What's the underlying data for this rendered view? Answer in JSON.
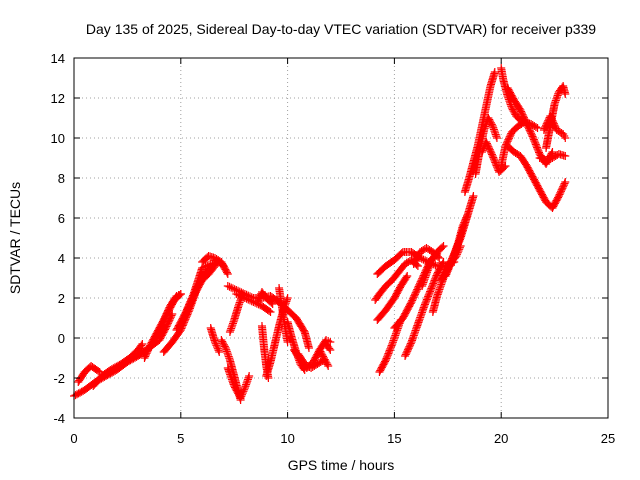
{
  "chart_data": {
    "type": "scatter",
    "title": "Day 135 of 2025, Sidereal Day-to-day VTEC variation (SDTVAR) for receiver p339",
    "xlabel": "GPS time / hours",
    "ylabel": "SDTVAR / TECUs",
    "xlim": [
      0,
      25
    ],
    "ylim": [
      -4,
      14
    ],
    "xticks": [
      "0",
      "5",
      "10",
      "15",
      "20",
      "25"
    ],
    "yticks": [
      "-4",
      "-2",
      "0",
      "2",
      "4",
      "6",
      "8",
      "10",
      "12",
      "14"
    ],
    "grid": true,
    "marker": "+",
    "color": "#ff0000",
    "series": [
      {
        "name": "",
        "points": [
          [
            0.0,
            -2.9
          ],
          [
            0.5,
            -2.6
          ],
          [
            1.0,
            -2.2
          ],
          [
            1.5,
            -1.9
          ],
          [
            2.0,
            -1.6
          ],
          [
            2.5,
            -1.2
          ],
          [
            3.0,
            -0.9
          ],
          [
            3.5,
            -0.5
          ],
          [
            4.0,
            -0.1
          ],
          [
            4.3,
            0.5
          ],
          [
            4.6,
            1.2
          ]
        ]
      },
      {
        "name": "",
        "points": [
          [
            0.2,
            -2.2
          ],
          [
            0.5,
            -1.7
          ],
          [
            0.8,
            -1.4
          ],
          [
            1.2,
            -1.7
          ]
        ]
      },
      {
        "name": "",
        "points": [
          [
            0.9,
            -2.4
          ],
          [
            1.3,
            -1.9
          ],
          [
            1.7,
            -1.6
          ],
          [
            2.2,
            -1.3
          ],
          [
            2.6,
            -1.0
          ],
          [
            3.0,
            -0.6
          ],
          [
            3.2,
            -0.3
          ]
        ]
      },
      {
        "name": "",
        "points": [
          [
            3.3,
            -1.0
          ],
          [
            3.6,
            -0.3
          ],
          [
            3.9,
            0.3
          ],
          [
            4.2,
            0.9
          ],
          [
            4.5,
            1.6
          ],
          [
            4.8,
            2.1
          ],
          [
            5.0,
            2.2
          ]
        ]
      },
      {
        "name": "",
        "points": [
          [
            3.8,
            0.0
          ],
          [
            4.1,
            0.6
          ],
          [
            4.4,
            1.3
          ],
          [
            4.7,
            1.9
          ],
          [
            5.0,
            2.2
          ]
        ]
      },
      {
        "name": "",
        "points": [
          [
            4.2,
            -0.7
          ],
          [
            4.6,
            -0.2
          ],
          [
            5.0,
            0.4
          ],
          [
            5.4,
            1.4
          ],
          [
            5.8,
            2.6
          ],
          [
            6.2,
            3.3
          ],
          [
            6.6,
            3.7
          ]
        ]
      },
      {
        "name": "",
        "points": [
          [
            4.8,
            0.4
          ],
          [
            5.2,
            1.2
          ],
          [
            5.6,
            2.2
          ],
          [
            6.0,
            3.5
          ],
          [
            6.4,
            3.7
          ],
          [
            6.8,
            3.8
          ],
          [
            7.0,
            3.6
          ]
        ]
      },
      {
        "name": "",
        "points": [
          [
            5.1,
            0.9
          ],
          [
            5.4,
            1.6
          ],
          [
            5.7,
            2.3
          ],
          [
            6.0,
            2.9
          ],
          [
            6.3,
            3.2
          ],
          [
            6.6,
            3.6
          ]
        ]
      },
      {
        "name": "",
        "points": [
          [
            6.0,
            3.8
          ],
          [
            6.3,
            4.1
          ],
          [
            6.6,
            4.0
          ],
          [
            6.9,
            3.8
          ],
          [
            7.2,
            3.2
          ]
        ]
      },
      {
        "name": "",
        "points": [
          [
            6.4,
            0.5
          ],
          [
            6.6,
            -0.2
          ],
          [
            6.8,
            -0.7
          ]
        ]
      },
      {
        "name": "",
        "points": [
          [
            6.9,
            -0.1
          ],
          [
            7.1,
            -0.5
          ],
          [
            7.3,
            -1.1
          ],
          [
            7.5,
            -1.9
          ],
          [
            7.7,
            -2.7
          ],
          [
            7.8,
            -3.1
          ]
        ]
      },
      {
        "name": "",
        "points": [
          [
            7.2,
            -1.5
          ],
          [
            7.5,
            -2.4
          ],
          [
            7.8,
            -3.0
          ],
          [
            8.0,
            -2.5
          ],
          [
            8.2,
            -1.9
          ]
        ]
      },
      {
        "name": "",
        "points": [
          [
            7.3,
            0.3
          ],
          [
            7.5,
            0.9
          ],
          [
            7.7,
            1.6
          ],
          [
            7.9,
            2.2
          ]
        ]
      },
      {
        "name": "",
        "points": [
          [
            7.2,
            2.6
          ],
          [
            7.6,
            2.4
          ],
          [
            8.0,
            2.2
          ],
          [
            8.4,
            2.0
          ],
          [
            8.8,
            2.0
          ],
          [
            9.2,
            2.1
          ],
          [
            9.6,
            1.8
          ],
          [
            10.0,
            1.4
          ],
          [
            10.4,
            1.0
          ],
          [
            10.8,
            0.3
          ],
          [
            11.0,
            -0.5
          ]
        ]
      },
      {
        "name": "",
        "points": [
          [
            7.6,
            2.2
          ],
          [
            8.0,
            2.0
          ],
          [
            8.4,
            1.8
          ],
          [
            8.8,
            1.6
          ],
          [
            9.2,
            1.3
          ]
        ]
      },
      {
        "name": "",
        "points": [
          [
            8.6,
            1.8
          ],
          [
            8.8,
            2.3
          ],
          [
            9.0,
            2.0
          ],
          [
            9.3,
            1.7
          ]
        ]
      },
      {
        "name": "",
        "points": [
          [
            9.0,
            -1.9
          ],
          [
            9.2,
            -1.2
          ],
          [
            9.4,
            -0.3
          ],
          [
            9.6,
            0.6
          ],
          [
            9.8,
            1.4
          ],
          [
            10.0,
            2.0
          ]
        ]
      },
      {
        "name": "",
        "points": [
          [
            8.8,
            0.6
          ],
          [
            8.9,
            -0.5
          ],
          [
            9.0,
            -1.4
          ],
          [
            9.1,
            -2.0
          ]
        ]
      },
      {
        "name": "",
        "points": [
          [
            9.6,
            2.5
          ],
          [
            9.7,
            1.8
          ],
          [
            9.8,
            1.1
          ],
          [
            9.9,
            0.4
          ],
          [
            10.0,
            -0.2
          ]
        ]
      },
      {
        "name": "",
        "points": [
          [
            10.0,
            0.8
          ],
          [
            10.2,
            0.0
          ],
          [
            10.4,
            -0.7
          ],
          [
            10.6,
            -1.3
          ],
          [
            10.8,
            -1.6
          ]
        ]
      },
      {
        "name": "",
        "points": [
          [
            10.3,
            -0.6
          ],
          [
            10.6,
            -1.1
          ],
          [
            10.9,
            -1.5
          ],
          [
            11.2,
            -1.2
          ],
          [
            11.5,
            -0.6
          ],
          [
            11.8,
            -0.1
          ],
          [
            12.0,
            -0.2
          ]
        ]
      },
      {
        "name": "",
        "points": [
          [
            10.5,
            -0.8
          ],
          [
            10.8,
            -1.3
          ],
          [
            11.1,
            -1.5
          ],
          [
            11.4,
            -1.3
          ],
          [
            11.7,
            -1.1
          ]
        ]
      },
      {
        "name": "",
        "points": [
          [
            11.5,
            -0.6
          ],
          [
            11.7,
            -1.0
          ],
          [
            11.9,
            -1.4
          ]
        ]
      },
      {
        "name": "",
        "points": [
          [
            11.8,
            -0.3
          ],
          [
            12.0,
            -0.6
          ]
        ]
      },
      {
        "name": "",
        "points": [
          [
            14.3,
            -1.7
          ],
          [
            14.6,
            -1.1
          ],
          [
            14.9,
            -0.3
          ],
          [
            15.1,
            0.3
          ],
          [
            15.3,
            0.9
          ]
        ]
      },
      {
        "name": "",
        "points": [
          [
            14.1,
            1.9
          ],
          [
            14.3,
            2.2
          ],
          [
            14.6,
            2.6
          ],
          [
            14.9,
            2.9
          ],
          [
            15.2,
            3.3
          ],
          [
            15.5,
            3.7
          ],
          [
            15.8,
            3.9
          ],
          [
            16.1,
            3.6
          ]
        ]
      },
      {
        "name": "",
        "points": [
          [
            14.2,
            3.2
          ],
          [
            14.6,
            3.6
          ],
          [
            15.0,
            3.9
          ],
          [
            15.4,
            4.3
          ],
          [
            15.8,
            4.3
          ],
          [
            16.2,
            4.0
          ],
          [
            16.6,
            3.8
          ],
          [
            17.0,
            3.6
          ],
          [
            17.4,
            3.6
          ],
          [
            17.8,
            3.8
          ]
        ]
      },
      {
        "name": "",
        "points": [
          [
            14.2,
            0.9
          ],
          [
            14.6,
            1.4
          ],
          [
            15.0,
            2.0
          ],
          [
            15.3,
            2.6
          ],
          [
            15.6,
            3.1
          ]
        ]
      },
      {
        "name": "",
        "points": [
          [
            15.0,
            0.5
          ],
          [
            15.4,
            1.0
          ],
          [
            15.8,
            1.8
          ],
          [
            16.1,
            2.5
          ],
          [
            16.4,
            3.2
          ],
          [
            16.7,
            3.9
          ],
          [
            17.0,
            4.2
          ]
        ]
      },
      {
        "name": "",
        "points": [
          [
            15.5,
            -0.9
          ],
          [
            15.8,
            -0.2
          ],
          [
            16.1,
            0.7
          ],
          [
            16.4,
            1.6
          ],
          [
            16.7,
            2.4
          ],
          [
            17.0,
            3.2
          ],
          [
            17.3,
            3.8
          ]
        ]
      },
      {
        "name": "",
        "points": [
          [
            15.9,
            3.7
          ],
          [
            16.2,
            4.3
          ],
          [
            16.5,
            4.5
          ],
          [
            16.8,
            4.3
          ],
          [
            17.1,
            4.0
          ]
        ]
      },
      {
        "name": "",
        "points": [
          [
            16.3,
            2.6
          ],
          [
            16.5,
            3.2
          ],
          [
            16.7,
            3.8
          ],
          [
            17.0,
            4.3
          ],
          [
            17.3,
            4.6
          ]
        ]
      },
      {
        "name": "",
        "points": [
          [
            16.8,
            1.3
          ],
          [
            17.0,
            2.1
          ],
          [
            17.3,
            3.0
          ],
          [
            17.6,
            3.7
          ],
          [
            17.9,
            4.1
          ],
          [
            18.1,
            4.6
          ]
        ]
      },
      {
        "name": "",
        "points": [
          [
            17.2,
            2.9
          ],
          [
            17.5,
            3.5
          ],
          [
            17.8,
            4.2
          ],
          [
            18.1,
            5.0
          ],
          [
            18.3,
            5.7
          ],
          [
            18.5,
            6.4
          ],
          [
            18.7,
            7.1
          ]
        ]
      },
      {
        "name": "",
        "points": [
          [
            17.4,
            3.1
          ],
          [
            17.7,
            3.9
          ],
          [
            18.0,
            4.8
          ],
          [
            18.2,
            5.6
          ],
          [
            18.4,
            6.1
          ]
        ]
      },
      {
        "name": "",
        "points": [
          [
            18.3,
            7.3
          ],
          [
            18.5,
            8.0
          ],
          [
            18.7,
            8.8
          ],
          [
            18.9,
            9.6
          ],
          [
            19.1,
            10.6
          ],
          [
            19.3,
            11.6
          ],
          [
            19.5,
            12.6
          ],
          [
            19.7,
            13.3
          ]
        ]
      },
      {
        "name": "",
        "points": [
          [
            18.8,
            8.2
          ],
          [
            19.0,
            9.4
          ],
          [
            19.2,
            10.4
          ],
          [
            19.4,
            11.0
          ],
          [
            19.6,
            10.6
          ],
          [
            19.8,
            10.0
          ]
        ]
      },
      {
        "name": "",
        "points": [
          [
            19.1,
            9.3
          ],
          [
            19.3,
            9.8
          ],
          [
            19.6,
            9.1
          ],
          [
            19.9,
            8.3
          ],
          [
            20.2,
            8.6
          ]
        ]
      },
      {
        "name": "",
        "points": [
          [
            20.0,
            13.5
          ],
          [
            20.1,
            12.9
          ],
          [
            20.3,
            12.1
          ],
          [
            20.5,
            11.5
          ],
          [
            20.7,
            11.1
          ],
          [
            21.0,
            10.8
          ]
        ]
      },
      {
        "name": "",
        "points": [
          [
            20.0,
            8.6
          ],
          [
            20.2,
            9.6
          ],
          [
            20.5,
            10.3
          ],
          [
            20.8,
            10.6
          ],
          [
            21.1,
            10.8
          ],
          [
            21.4,
            10.7
          ],
          [
            21.7,
            10.5
          ]
        ]
      },
      {
        "name": "",
        "points": [
          [
            20.3,
            12.5
          ],
          [
            20.6,
            11.9
          ],
          [
            20.9,
            11.4
          ],
          [
            21.2,
            10.7
          ],
          [
            21.5,
            10.0
          ],
          [
            21.8,
            9.2
          ],
          [
            22.1,
            8.7
          ],
          [
            22.4,
            9.3
          ]
        ]
      },
      {
        "name": "",
        "points": [
          [
            20.3,
            9.6
          ],
          [
            20.6,
            9.3
          ],
          [
            20.9,
            9.1
          ],
          [
            21.2,
            8.6
          ],
          [
            21.5,
            8.0
          ],
          [
            21.8,
            7.4
          ],
          [
            22.1,
            6.8
          ],
          [
            22.4,
            6.5
          ],
          [
            22.7,
            7.1
          ],
          [
            23.0,
            7.8
          ]
        ]
      },
      {
        "name": "",
        "points": [
          [
            21.8,
            9.0
          ],
          [
            22.1,
            8.9
          ],
          [
            22.4,
            9.0
          ],
          [
            22.7,
            9.2
          ],
          [
            23.0,
            9.1
          ]
        ]
      },
      {
        "name": "",
        "points": [
          [
            22.1,
            9.5
          ],
          [
            22.3,
            10.6
          ],
          [
            22.5,
            11.7
          ],
          [
            22.7,
            12.3
          ],
          [
            22.9,
            12.6
          ],
          [
            23.0,
            12.2
          ]
        ]
      },
      {
        "name": "",
        "points": [
          [
            22.0,
            10.4
          ],
          [
            22.3,
            11.1
          ],
          [
            22.6,
            10.4
          ],
          [
            22.9,
            10.2
          ],
          [
            23.0,
            10.0
          ]
        ]
      }
    ]
  }
}
